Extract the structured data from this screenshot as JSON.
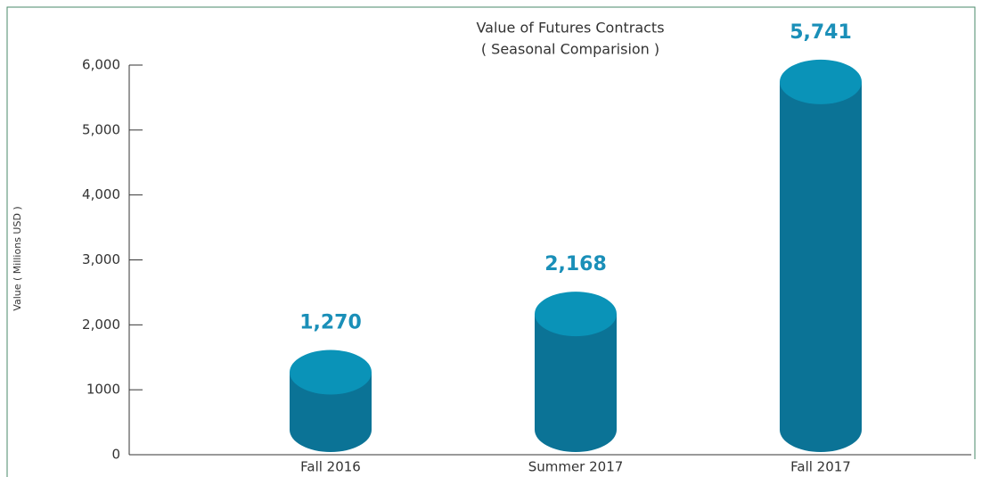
{
  "chart_data": {
    "type": "cylinder",
    "title": "Value of Futures Contracts",
    "subtitle": "( Seasonal Comparision )",
    "y_label": "Value ( Millions USD )",
    "categories": [
      "Fall 2016",
      "Summer 2017",
      "Fall 2017"
    ],
    "values": [
      1270,
      2168,
      5741
    ],
    "value_labels": [
      "1,270",
      "2,168",
      "5,741"
    ],
    "color": "#0b7396",
    "top_color": "#0a93b8",
    "label_color": "#1a8fb8",
    "ylim": [
      0,
      6000
    ],
    "yticks": [
      0,
      1000,
      {
        "value": 2000,
        "label": "2,000"
      },
      {
        "value": 3000,
        "label": "3,000"
      },
      {
        "value": 4000,
        "label": "4,000"
      },
      {
        "value": 5000,
        "label": "5,000"
      },
      {
        "value": 6000,
        "label": "6,000"
      }
    ]
  }
}
